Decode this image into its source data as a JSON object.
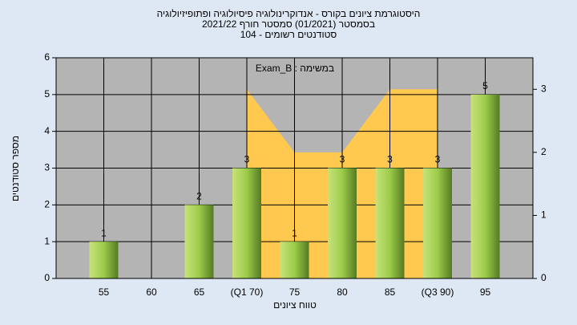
{
  "chart_data": {
    "type": "bar",
    "title": [
      "היסטוגרמת ציונים בקורס - אנדוקרינולוגיה פיסיולוגיה ופתופיזיולוגיה",
      "בסמסטר  (01/2021)  סמסטר חורף 2021/22",
      "סטודנטים רשומים - 104"
    ],
    "annotation": "Exam_B : במשימה",
    "y_label": "מספר סטודנטים",
    "x_label": "טווח ציונים",
    "categories": [
      "55",
      "60",
      "65",
      "(Q1 70)",
      "75",
      "80",
      "85",
      "(Q3 90)",
      "95"
    ],
    "values": [
      1,
      0,
      2,
      3,
      1,
      3,
      3,
      3,
      5
    ],
    "color": "#9ccc4a",
    "overlay": {
      "type": "area",
      "axis": "y2",
      "values": [
        null,
        null,
        null,
        3,
        2,
        2,
        3,
        3,
        null
      ],
      "color": "#ffc94f"
    },
    "ylim": [
      0,
      6
    ],
    "yticks": [
      0,
      1,
      2,
      3,
      4,
      5,
      6
    ],
    "y2lim": [
      0,
      3.5
    ],
    "y2ticks": [
      0,
      1,
      2,
      3
    ],
    "grid": true
  }
}
